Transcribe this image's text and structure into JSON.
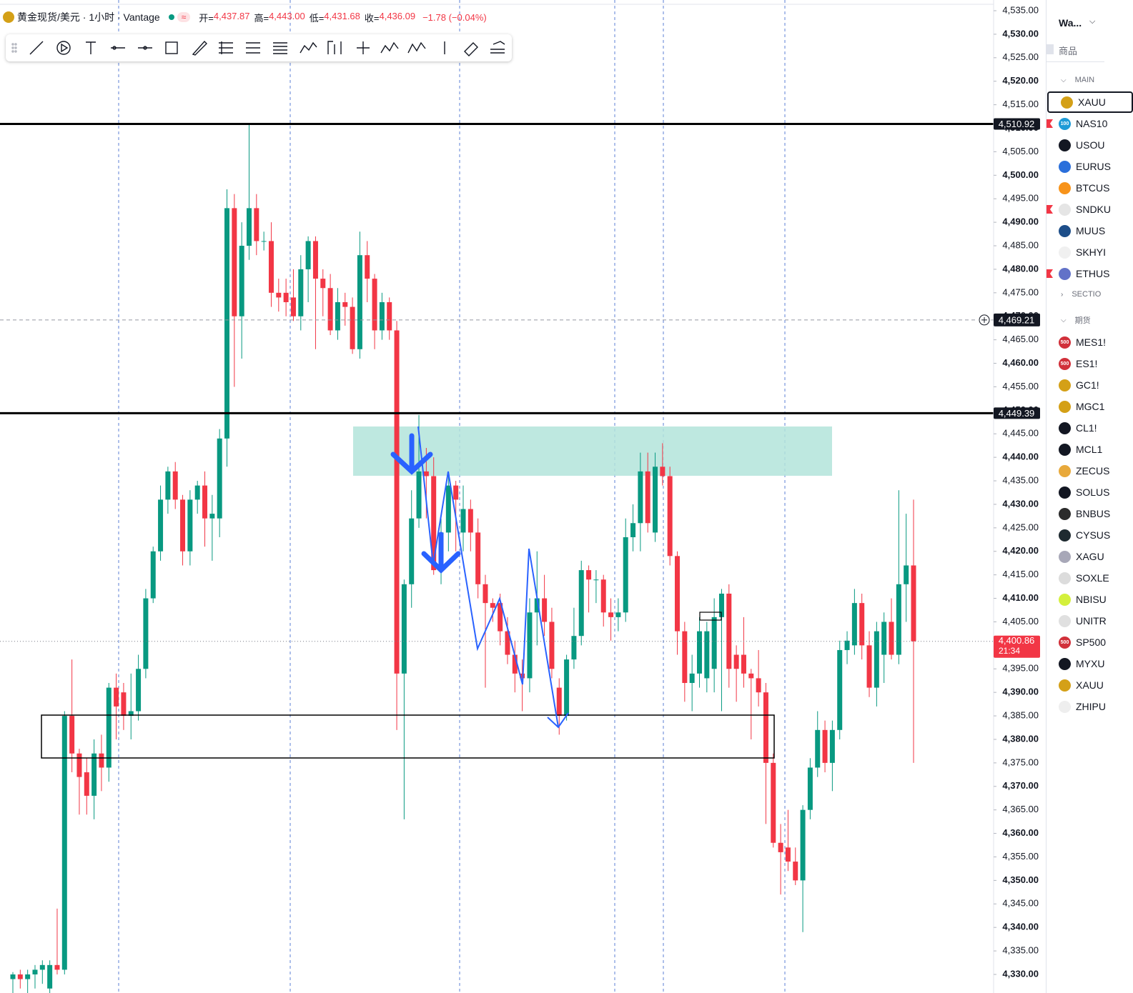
{
  "header": {
    "symbol": "黄金现货/美元 · 1小时 · Vantage",
    "ohlc": [
      {
        "label": "开=",
        "value": "4,437.87"
      },
      {
        "label": "高=",
        "value": "4,443.00"
      },
      {
        "label": "低=",
        "value": "4,431.68"
      },
      {
        "label": "收=",
        "value": "4,436.09"
      }
    ],
    "change": "−1.78 (−0.04%)"
  },
  "chart_data": {
    "type": "candlestick",
    "open": [
      4329,
      4330,
      4329,
      4330,
      4331,
      4327,
      4332,
      4331,
      4385,
      4377,
      4373,
      4368,
      4377,
      4374,
      4391,
      4390,
      4385,
      4386,
      4395,
      4410,
      4420,
      4431,
      4437,
      4431,
      4420,
      4431,
      4434,
      4427,
      4427,
      4444,
      4493,
      4470,
      4485,
      4493,
      4486,
      4486,
      4475,
      4475,
      4474,
      4470,
      4480,
      4486,
      4478,
      4476,
      4467,
      4473,
      4472,
      4463,
      4483,
      4478,
      4467,
      4473,
      4467,
      4394,
      4413,
      4427,
      4437,
      4436,
      4416,
      4424,
      4434,
      4424,
      4429,
      4424,
      4413,
      4409,
      4409,
      4403,
      4398,
      4394,
      4393,
      4407,
      4410,
      4405,
      4391,
      4385,
      4397,
      4402,
      4416,
      4414,
      4414,
      4407,
      4406,
      4407,
      4423,
      4426,
      4437,
      4424,
      4438,
      4436,
      4419,
      4403,
      4392,
      4394,
      4393,
      4395,
      4406,
      4411,
      4398,
      4398,
      4394,
      4393,
      4390,
      4375,
      4358,
      4357,
      4354,
      4350,
      4365,
      4374,
      4382,
      4375,
      4382,
      4399,
      4400,
      4409,
      4400,
      4391,
      4398,
      4405,
      4398,
      4413,
      4417
    ],
    "high": [
      4330.5,
      4331,
      4331,
      4332,
      4333,
      4333,
      4344,
      4386,
      4397,
      4378,
      4376,
      4380,
      4381,
      4392,
      4394,
      4392,
      4394,
      4398,
      4412,
      4421,
      4434,
      4438,
      4439,
      4432,
      4433,
      4435,
      4437,
      4432,
      4446,
      4497,
      4496,
      4490,
      4510.9,
      4496,
      4488,
      4490,
      4478,
      4478,
      4480,
      4483,
      4487,
      4487,
      4480,
      4479,
      4476,
      4475,
      4474,
      4488,
      4486,
      4479,
      4475,
      4474,
      4469,
      4414,
      4433,
      4449,
      4442,
      4440,
      4427,
      4436,
      4435,
      4434,
      4431,
      4427,
      4415,
      4410,
      4411,
      4406,
      4401,
      4397,
      4410,
      4420,
      4415,
      4408,
      4393,
      4398,
      4408,
      4418,
      4417,
      4416,
      4415,
      4410,
      4410,
      4427,
      4430,
      4441,
      4441,
      4441,
      4443,
      4438,
      4420,
      4405,
      4398,
      4406,
      4405,
      4410,
      4412,
      4413,
      4400,
      4406,
      4395,
      4399,
      4392,
      4377,
      4362,
      4365,
      4357,
      4366,
      4376,
      4386,
      4384,
      4384,
      4401,
      4403,
      4412,
      4411,
      4403,
      4405,
      4407,
      4410,
      4433,
      4428,
      4431
    ],
    "low": [
      4326,
      4327,
      4326,
      4327,
      4328,
      4326,
      4330,
      4330,
      4373,
      4364,
      4364,
      4363,
      4369,
      4371,
      4380,
      4382,
      4380,
      4384,
      4393,
      4409,
      4418,
      4428,
      4429,
      4417,
      4417,
      4428,
      4421,
      4418,
      4423,
      4438,
      4455,
      4461,
      4482,
      4483,
      4484,
      4472,
      4471,
      4470,
      4469,
      4467,
      4473,
      4463,
      4470,
      4466,
      4465,
      4468,
      4462,
      4461,
      4473,
      4463,
      4465,
      4465,
      4382,
      4363,
      4408,
      4425,
      4427,
      4415,
      4413,
      4420,
      4420,
      4420,
      4420,
      4410,
      4391,
      4405,
      4400,
      4396,
      4390,
      4386,
      4390,
      4400,
      4402,
      4393,
      4381,
      4384,
      4395,
      4400,
      4407,
      4409,
      4404,
      4401,
      4403,
      4405,
      4420,
      4420,
      4424,
      4422,
      4434,
      4417,
      4398,
      4388,
      4386,
      4391,
      4390,
      4390,
      4386,
      4391,
      4388,
      4391,
      4380,
      4387,
      4362,
      4357,
      4347,
      4352,
      4349,
      4339,
      4363,
      4372,
      4373,
      4369,
      4380,
      4396,
      4398,
      4397,
      4389,
      4387,
      4392,
      4397,
      4396,
      4405,
      4375
    ],
    "close": [
      4330,
      4329,
      4330,
      4331,
      4332,
      4332,
      4331,
      4385,
      4377,
      4372,
      4368,
      4377,
      4374,
      4391,
      4387,
      4385,
      4386,
      4395,
      4410,
      4420,
      4431,
      4437,
      4431,
      4420,
      4431,
      4434,
      4427,
      4428,
      4444,
      4493,
      4470,
      4485,
      4493,
      4486,
      4486,
      4475,
      4474,
      4473,
      4470,
      4480,
      4486,
      4478,
      4476,
      4467,
      4473,
      4472,
      4463,
      4483,
      4478,
      4467,
      4473,
      4467,
      4394,
      4413,
      4427,
      4437,
      4436,
      4416,
      4424,
      4434,
      4431,
      4429,
      4424,
      4413,
      4409,
      4408,
      4403,
      4398,
      4394,
      4393,
      4407,
      4410,
      4405,
      4395,
      4385,
      4397,
      4402,
      4416,
      4414,
      4414,
      4407,
      4406,
      4407,
      4423,
      4426,
      4437,
      4426,
      4438,
      4436,
      4419,
      4403,
      4392,
      4394,
      4403,
      4403,
      4406,
      4411,
      4395,
      4395,
      4394,
      4393,
      4390,
      4375,
      4358,
      4356,
      4354,
      4350,
      4365,
      4374,
      4382,
      4375,
      4382,
      4399,
      4401,
      4409,
      4400,
      4391,
      4403,
      4405,
      4398,
      4413,
      4417,
      4400.86
    ],
    "up_color": "#089981",
    "down_color": "#f23645",
    "ylim": [
      4330,
      4535
    ],
    "yticks": [
      {
        "value": 4330,
        "label": "4,330.00"
      },
      {
        "value": 4335,
        "label": "4,335.00"
      },
      {
        "value": 4340,
        "label": "4,340.00"
      },
      {
        "value": 4345,
        "label": "4,345.00"
      },
      {
        "value": 4350,
        "label": "4,350.00"
      },
      {
        "value": 4355,
        "label": "4,355.00"
      },
      {
        "value": 4360,
        "label": "4,360.00"
      },
      {
        "value": 4365,
        "label": "4,365.00"
      },
      {
        "value": 4370,
        "label": "4,370.00"
      },
      {
        "value": 4375,
        "label": "4,375.00"
      },
      {
        "value": 4380,
        "label": "4,380.00"
      },
      {
        "value": 4385,
        "label": "4,385.00"
      },
      {
        "value": 4390,
        "label": "4,390.00"
      },
      {
        "value": 4395,
        "label": "4,395.00"
      },
      {
        "value": 4400,
        "label": "4,400.00"
      },
      {
        "value": 4405,
        "label": "4,405.00"
      },
      {
        "value": 4410,
        "label": "4,410.00"
      },
      {
        "value": 4415,
        "label": "4,415.00"
      },
      {
        "value": 4420,
        "label": "4,420.00"
      },
      {
        "value": 4425,
        "label": "4,425.00"
      },
      {
        "value": 4430,
        "label": "4,430.00"
      },
      {
        "value": 4435,
        "label": "4,435.00"
      },
      {
        "value": 4440,
        "label": "4,440.00"
      },
      {
        "value": 4445,
        "label": "4,445.00"
      },
      {
        "value": 4450,
        "label": "4,450.00"
      },
      {
        "value": 4455,
        "label": "4,455.00"
      },
      {
        "value": 4460,
        "label": "4,460.00"
      },
      {
        "value": 4465,
        "label": "4,465.00"
      },
      {
        "value": 4470,
        "label": "4,470.00"
      },
      {
        "value": 4475,
        "label": "4,475.00"
      },
      {
        "value": 4480,
        "label": "4,480.00"
      },
      {
        "value": 4485,
        "label": "4,485.00"
      },
      {
        "value": 4490,
        "label": "4,490.00"
      },
      {
        "value": 4495,
        "label": "4,495.00"
      },
      {
        "value": 4500,
        "label": "4,500.00"
      },
      {
        "value": 4505,
        "label": "4,505.00"
      },
      {
        "value": 4510,
        "label": "4,510.00"
      },
      {
        "value": 4515,
        "label": "4,515.00"
      },
      {
        "value": 4520,
        "label": "4,520.00"
      },
      {
        "value": 4525,
        "label": "4,525.00"
      },
      {
        "value": 4530,
        "label": "4,530.00"
      },
      {
        "value": 4535,
        "label": "4,535.00"
      }
    ],
    "price_lines": [
      {
        "value": 4510.92,
        "label": "4,510.92",
        "style": "solid"
      },
      {
        "value": 4469.21,
        "label": "4,469.21",
        "style": "crosshair"
      },
      {
        "value": 4449.39,
        "label": "4,449.39",
        "style": "solid"
      },
      {
        "value": 4400.86,
        "label": "4,400.86",
        "style": "last",
        "countdown": "21:34"
      }
    ]
  },
  "watchlist": {
    "title": "Wa...",
    "column": "商品",
    "groups": [
      {
        "name": "MAIN",
        "open": true,
        "items": [
          {
            "symbol": "XAUU",
            "icon": "#d4a017"
          },
          {
            "symbol": "NAS10",
            "icon": "#1e9bd7",
            "badge": "100",
            "flag": true
          },
          {
            "symbol": "USOU",
            "icon": "#131722"
          },
          {
            "symbol": "EURUS",
            "icon": "#2a6fdb"
          },
          {
            "symbol": "BTCUS",
            "icon": "#f7931a"
          },
          {
            "symbol": "SNDKU",
            "icon": "#e5e5e5",
            "flag": true
          },
          {
            "symbol": "MUUS",
            "icon": "#1d4e89"
          },
          {
            "symbol": "SKHYI",
            "icon": "#f0f0f0"
          },
          {
            "symbol": "ETHUS",
            "icon": "#6272c8",
            "flag": true
          }
        ]
      },
      {
        "name": "SECTIO",
        "open": false,
        "items": []
      },
      {
        "name": "期货",
        "open": true,
        "items": [
          {
            "symbol": "MES1!",
            "icon": "#d1303a",
            "badge": "500"
          },
          {
            "symbol": "ES1!",
            "icon": "#d1303a",
            "badge": "500"
          },
          {
            "symbol": "GC1!",
            "icon": "#d4a017"
          },
          {
            "symbol": "MGC1",
            "icon": "#d4a017"
          },
          {
            "symbol": "CL1!",
            "icon": "#131722"
          },
          {
            "symbol": "MCL1",
            "icon": "#131722"
          },
          {
            "symbol": "ZECUS",
            "icon": "#e8a93b"
          },
          {
            "symbol": "SOLUS",
            "icon": "#131722"
          },
          {
            "symbol": "BNBUS",
            "icon": "#2b2b2b"
          },
          {
            "symbol": "CYSUS",
            "icon": "#1e2a30"
          },
          {
            "symbol": "XAGU",
            "icon": "#a8a8b8"
          },
          {
            "symbol": "SOXLE",
            "icon": "#dcdcdc"
          },
          {
            "symbol": "NBISU",
            "icon": "#d4f03c"
          },
          {
            "symbol": "UNITR",
            "icon": "#e0e0e0"
          },
          {
            "symbol": "SP500",
            "icon": "#d1303a",
            "badge": "500"
          },
          {
            "symbol": "MYXU",
            "icon": "#131722"
          },
          {
            "symbol": "XAUU",
            "icon": "#d4a017"
          },
          {
            "symbol": "ZHIPU",
            "icon": "#eeeeee"
          }
        ]
      }
    ]
  }
}
